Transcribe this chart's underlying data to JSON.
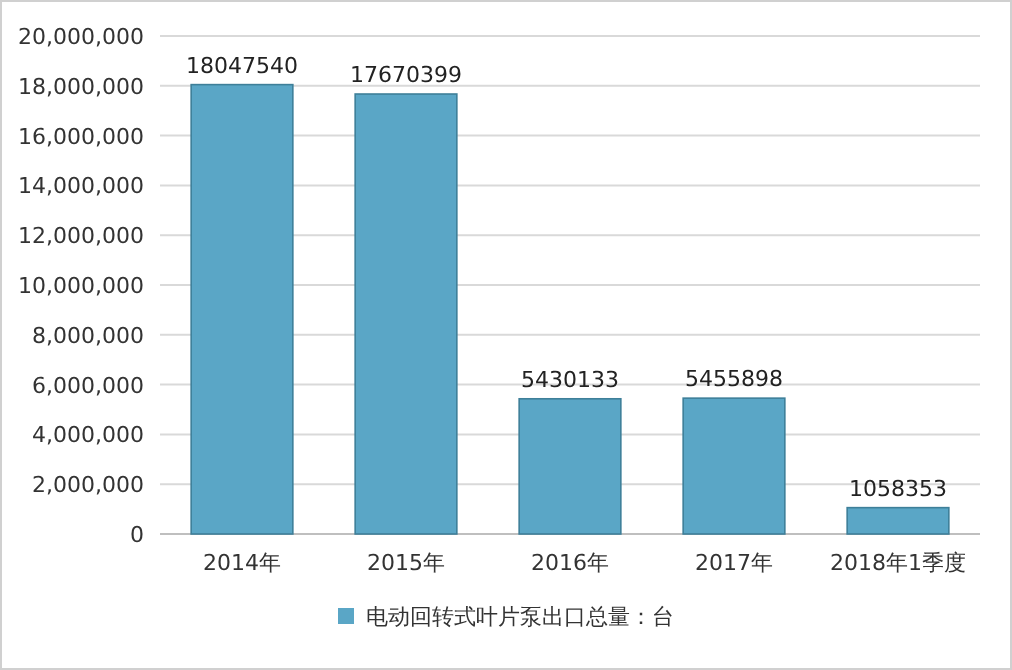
{
  "chart_data": {
    "type": "bar",
    "categories": [
      "2014年",
      "2015年",
      "2016年",
      "2017年",
      "2018年1季度"
    ],
    "series": [
      {
        "name": "电动回转式叶片泵出口总量：台",
        "color": "#5aa6c6",
        "values": [
          18047540,
          17670399,
          5430133,
          5455898,
          1058353
        ]
      }
    ],
    "ylim": [
      0,
      20000000
    ],
    "yticks": [
      0,
      {
        "value": 2000000,
        "label": "2,000,000"
      },
      {
        "value": 4000000,
        "label": "4,000,000"
      },
      {
        "value": 6000000,
        "label": "6,000,000"
      },
      {
        "value": 8000000,
        "label": "8,000,000"
      },
      {
        "value": 10000000,
        "label": "10,000,000"
      },
      {
        "value": 12000000,
        "label": "12,000,000"
      },
      {
        "value": 14000000,
        "label": "14,000,000"
      },
      {
        "value": 16000000,
        "label": "16,000,000"
      },
      {
        "value": 18000000,
        "label": "18,000,000"
      },
      {
        "value": 20000000,
        "label": "20,000,000"
      }
    ],
    "grid": "y",
    "legend": "bottom",
    "data_labels": true
  }
}
